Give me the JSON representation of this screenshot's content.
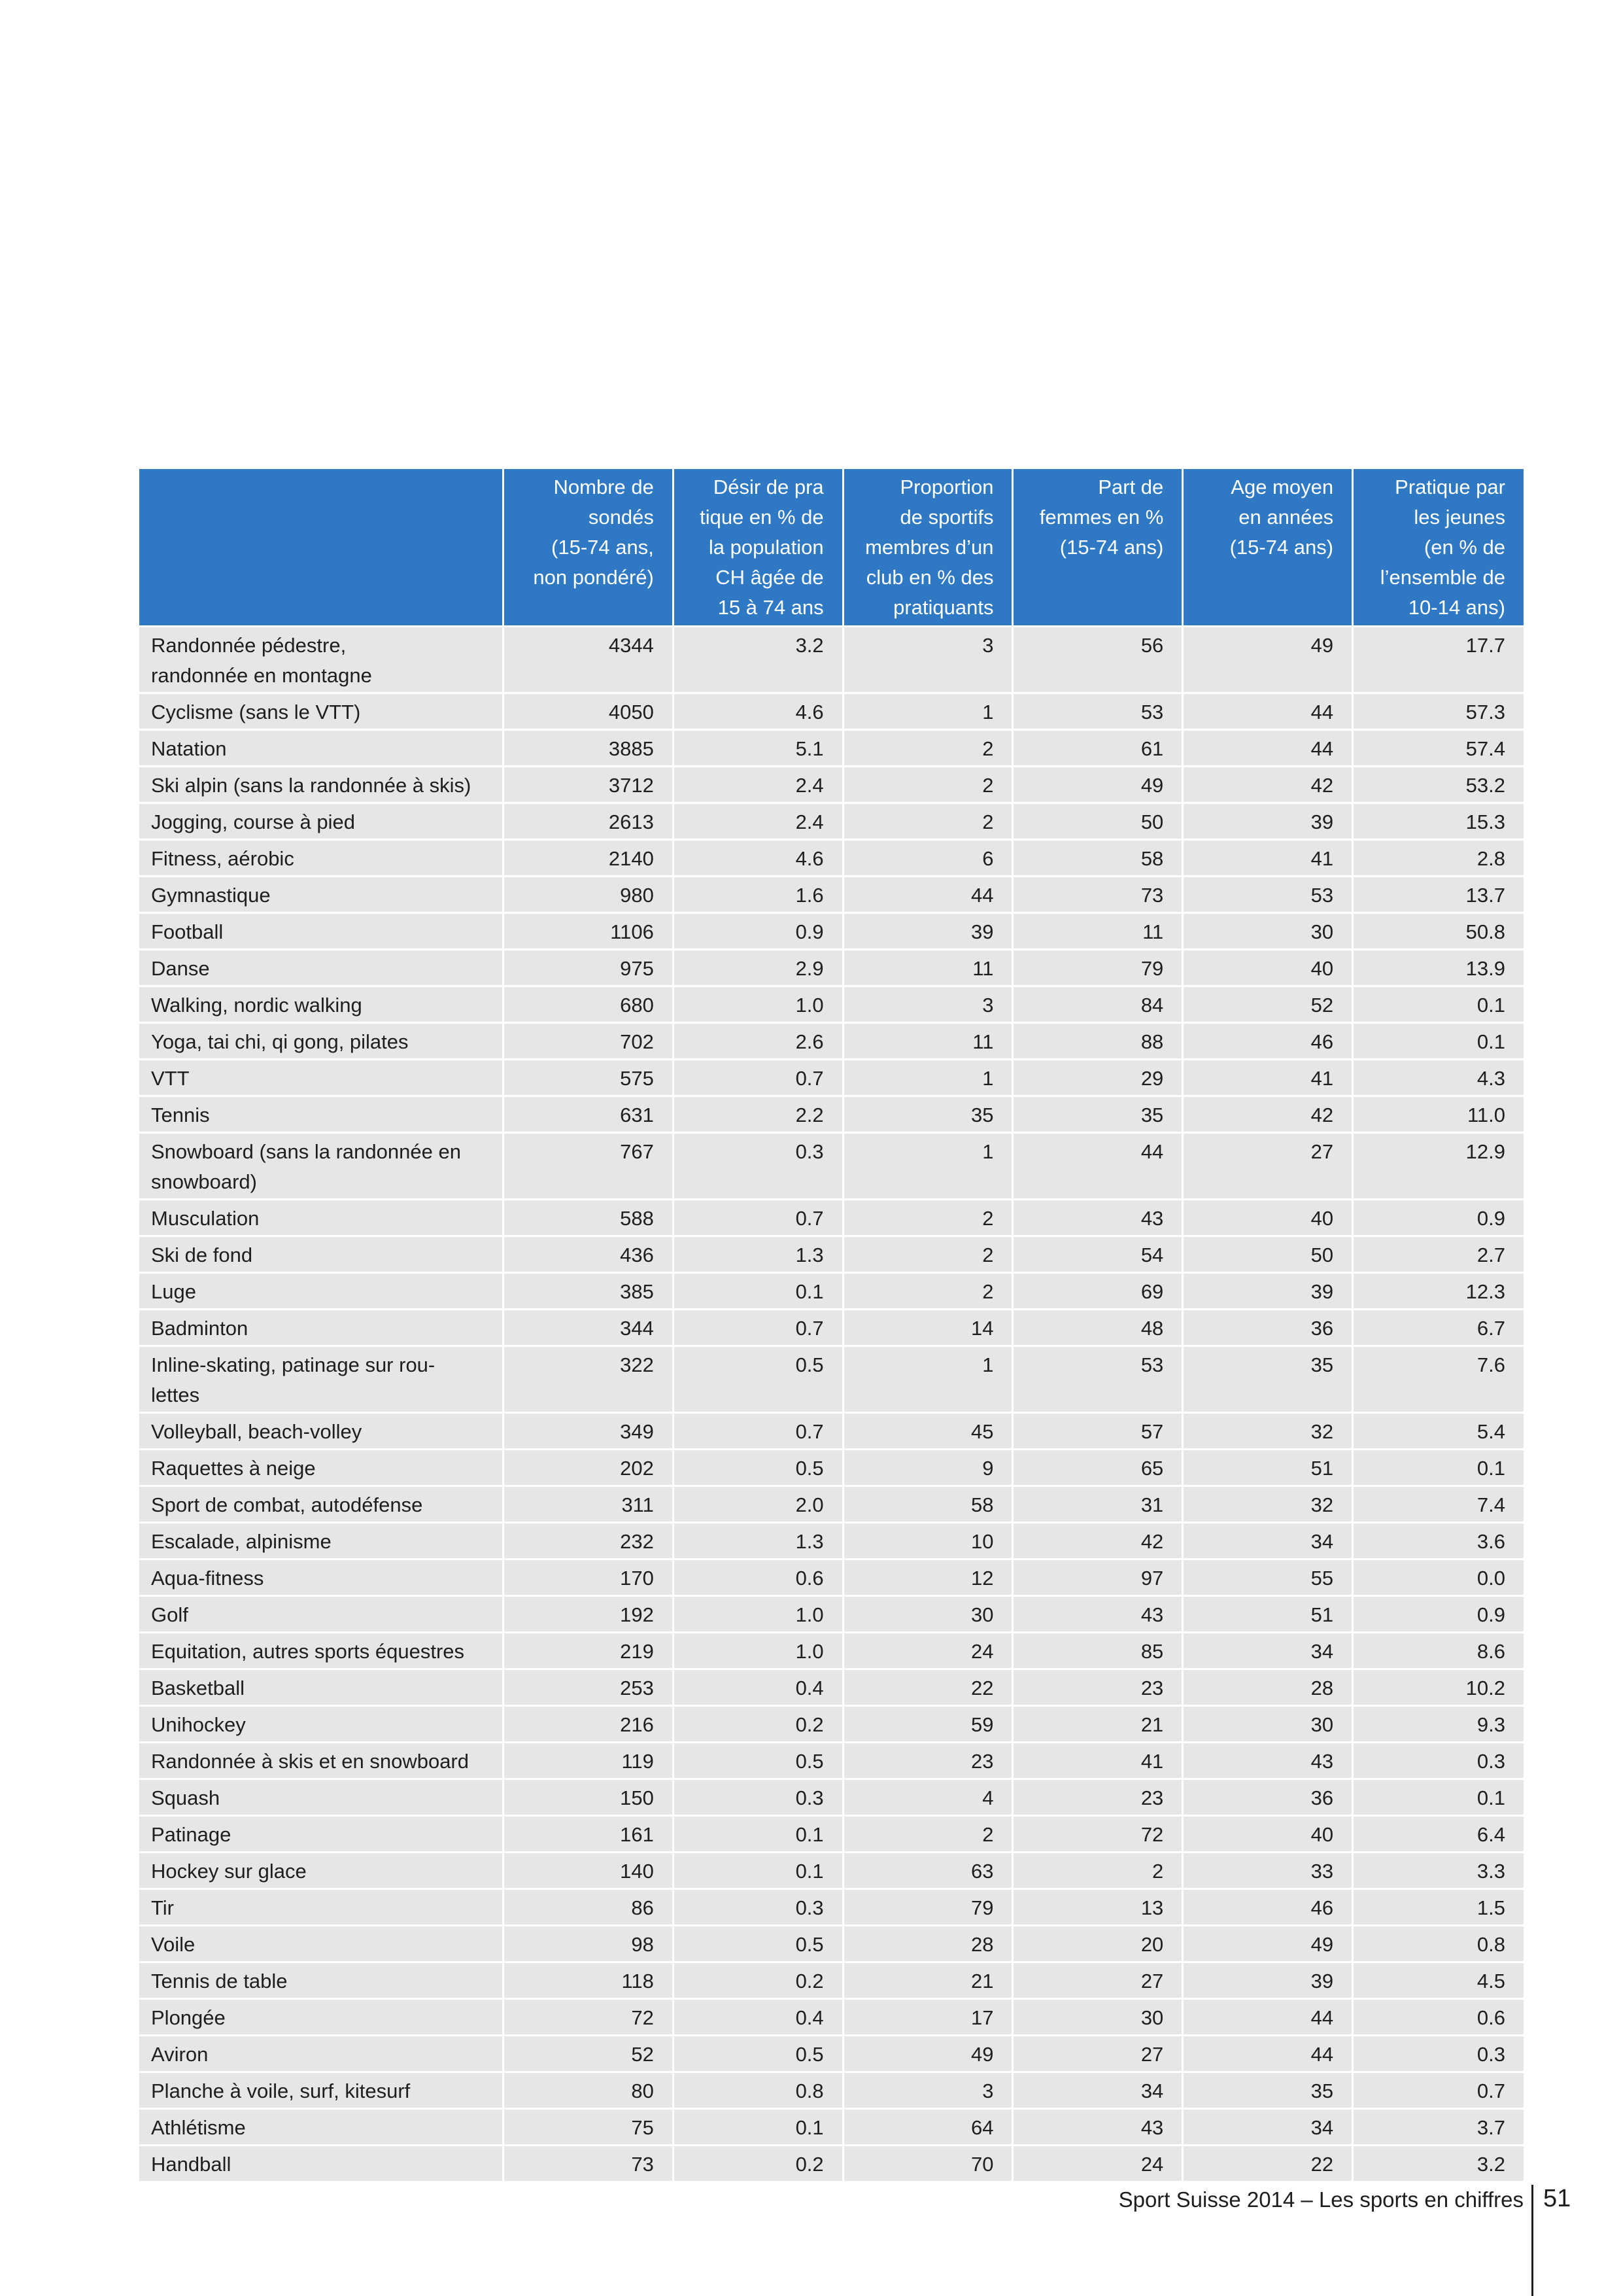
{
  "table": {
    "headers": [
      "",
      "Nombre de\nsondés\n(15-74 ans,\nnon pondéré)",
      "Désir de pra\ntique en % de\nla population\nCH âgée de\n15 à 74 ans",
      "Proportion\nde sportifs\nmembres d’un\nclub en % des\npratiquants",
      "Part de\nfemmes en %\n(15-74 ans)",
      "Age moyen\nen années\n(15-74 ans)",
      "Pratique par\nles jeunes\n(en % de\nl’ensemble de\n10-14 ans)"
    ],
    "rows": [
      [
        "Randonnée pédestre,\nrandonnée en montagne",
        "4344",
        "3.2",
        "3",
        "56",
        "49",
        "17.7"
      ],
      [
        "Cyclisme (sans le VTT)",
        "4050",
        "4.6",
        "1",
        "53",
        "44",
        "57.3"
      ],
      [
        "Natation",
        "3885",
        "5.1",
        "2",
        "61",
        "44",
        "57.4"
      ],
      [
        "Ski alpin (sans la randonnée à skis)",
        "3712",
        "2.4",
        "2",
        "49",
        "42",
        "53.2"
      ],
      [
        "Jogging, course à pied",
        "2613",
        "2.4",
        "2",
        "50",
        "39",
        "15.3"
      ],
      [
        "Fitness, aérobic",
        "2140",
        "4.6",
        "6",
        "58",
        "41",
        "2.8"
      ],
      [
        "Gymnastique",
        "980",
        "1.6",
        "44",
        "73",
        "53",
        "13.7"
      ],
      [
        "Football",
        "1106",
        "0.9",
        "39",
        "11",
        "30",
        "50.8"
      ],
      [
        "Danse",
        "975",
        "2.9",
        "11",
        "79",
        "40",
        "13.9"
      ],
      [
        "Walking, nordic walking",
        "680",
        "1.0",
        "3",
        "84",
        "52",
        "0.1"
      ],
      [
        "Yoga, tai chi, qi gong, pilates",
        "702",
        "2.6",
        "11",
        "88",
        "46",
        "0.1"
      ],
      [
        "VTT",
        "575",
        "0.7",
        "1",
        "29",
        "41",
        "4.3"
      ],
      [
        "Tennis",
        "631",
        "2.2",
        "35",
        "35",
        "42",
        "11.0"
      ],
      [
        "Snowboard (sans la randonnée en\nsnowboard)",
        "767",
        "0.3",
        "1",
        "44",
        "27",
        "12.9"
      ],
      [
        "Musculation",
        "588",
        "0.7",
        "2",
        "43",
        "40",
        "0.9"
      ],
      [
        "Ski de fond",
        "436",
        "1.3",
        "2",
        "54",
        "50",
        "2.7"
      ],
      [
        "Luge",
        "385",
        "0.1",
        "2",
        "69",
        "39",
        "12.3"
      ],
      [
        "Badminton",
        "344",
        "0.7",
        "14",
        "48",
        "36",
        "6.7"
      ],
      [
        "Inline-skating, patinage sur rou-\nlettes",
        "322",
        "0.5",
        "1",
        "53",
        "35",
        "7.6"
      ],
      [
        "Volleyball, beach-volley",
        "349",
        "0.7",
        "45",
        "57",
        "32",
        "5.4"
      ],
      [
        "Raquettes à neige",
        "202",
        "0.5",
        "9",
        "65",
        "51",
        "0.1"
      ],
      [
        "Sport de combat, autodéfense",
        "311",
        "2.0",
        "58",
        "31",
        "32",
        "7.4"
      ],
      [
        "Escalade, alpinisme",
        "232",
        "1.3",
        "10",
        "42",
        "34",
        "3.6"
      ],
      [
        "Aqua-fitness",
        "170",
        "0.6",
        "12",
        "97",
        "55",
        "0.0"
      ],
      [
        "Golf",
        "192",
        "1.0",
        "30",
        "43",
        "51",
        "0.9"
      ],
      [
        "Equitation, autres sports équestres",
        "219",
        "1.0",
        "24",
        "85",
        "34",
        "8.6"
      ],
      [
        "Basketball",
        "253",
        "0.4",
        "22",
        "23",
        "28",
        "10.2"
      ],
      [
        "Unihockey",
        "216",
        "0.2",
        "59",
        "21",
        "30",
        "9.3"
      ],
      [
        "Randonnée à skis et en snowboard",
        "119",
        "0.5",
        "23",
        "41",
        "43",
        "0.3"
      ],
      [
        "Squash",
        "150",
        "0.3",
        "4",
        "23",
        "36",
        "0.1"
      ],
      [
        "Patinage",
        "161",
        "0.1",
        "2",
        "72",
        "40",
        "6.4"
      ],
      [
        "Hockey sur glace",
        "140",
        "0.1",
        "63",
        "2",
        "33",
        "3.3"
      ],
      [
        "Tir",
        "86",
        "0.3",
        "79",
        "13",
        "46",
        "1.5"
      ],
      [
        "Voile",
        "98",
        "0.5",
        "28",
        "20",
        "49",
        "0.8"
      ],
      [
        "Tennis de table",
        "118",
        "0.2",
        "21",
        "27",
        "39",
        "4.5"
      ],
      [
        "Plongée",
        "72",
        "0.4",
        "17",
        "30",
        "44",
        "0.6"
      ],
      [
        "Aviron",
        "52",
        "0.5",
        "49",
        "27",
        "44",
        "0.3"
      ],
      [
        "Planche à voile, surf, kitesurf",
        "80",
        "0.8",
        "3",
        "34",
        "35",
        "0.7"
      ],
      [
        "Athlétisme",
        "75",
        "0.1",
        "64",
        "43",
        "34",
        "3.7"
      ],
      [
        "Handball",
        "73",
        "0.2",
        "70",
        "24",
        "22",
        "3.2"
      ]
    ]
  },
  "footer": {
    "title": "Sport Suisse 2014 – Les sports en chiffres",
    "page_number": "51"
  },
  "colors": {
    "header_bg": "#2f79c4",
    "row_bg": "#e6e6e8"
  }
}
